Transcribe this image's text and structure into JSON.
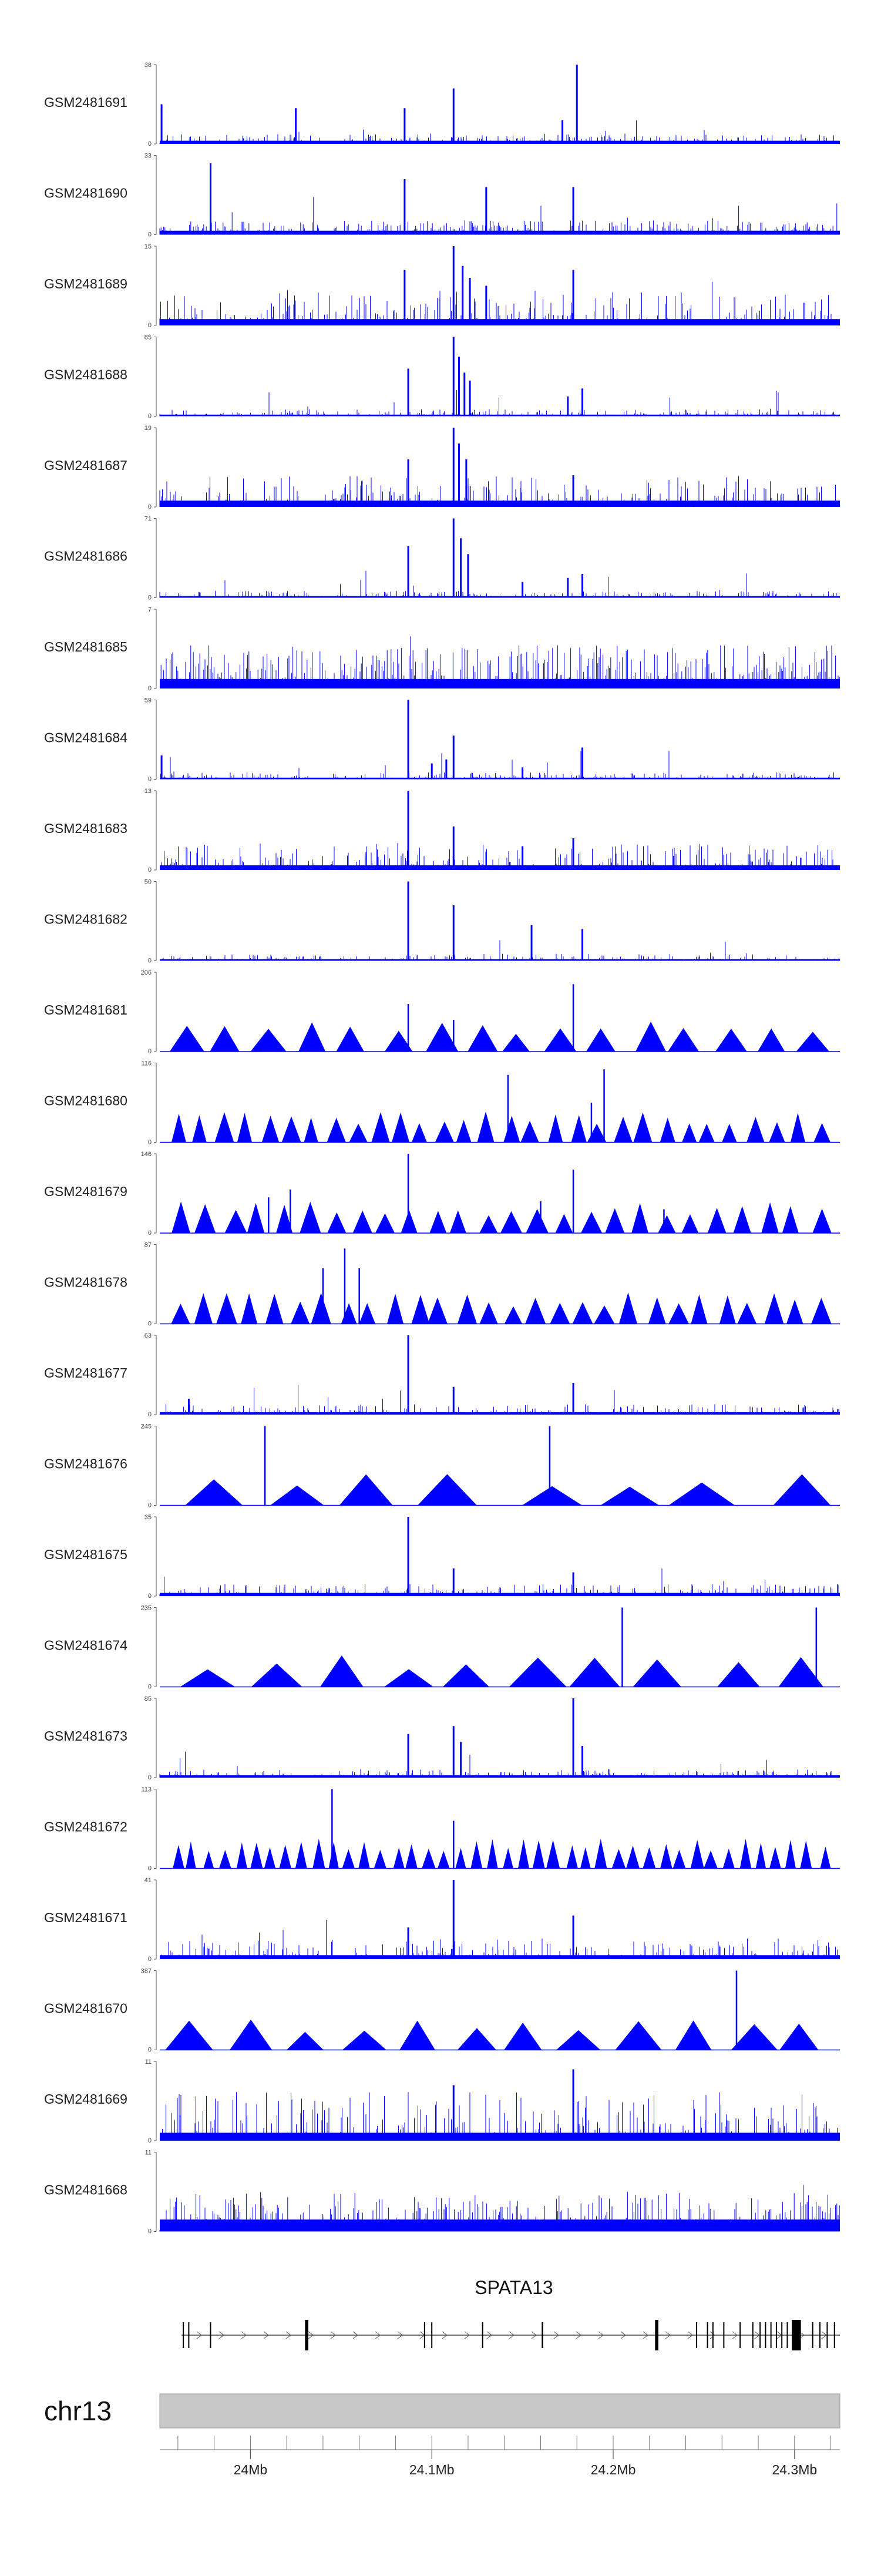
{
  "chart_data": {
    "type": "genome-track-plot",
    "title": "",
    "color": "#0000ff",
    "region": {
      "chromosome": "chr13",
      "start_mb": 23.95,
      "end_mb": 24.325
    },
    "tracks": [
      {
        "name": "GSM2481691",
        "ymax": "38",
        "ymin": "0",
        "max_value": 38,
        "style": "dense",
        "baseline": 0.04,
        "noise": 0.06,
        "peaks": [
          {
            "pos": 23.951,
            "h": 0.5
          },
          {
            "pos": 24.025,
            "h": 0.45
          },
          {
            "pos": 24.085,
            "h": 0.45
          },
          {
            "pos": 24.112,
            "h": 0.7
          },
          {
            "pos": 24.18,
            "h": 1.0
          },
          {
            "pos": 24.172,
            "h": 0.3
          }
        ]
      },
      {
        "name": "GSM2481690",
        "ymax": "33",
        "ymin": "0",
        "max_value": 33,
        "style": "sparse",
        "baseline": 0.05,
        "noise": 0.18,
        "peaks": [
          {
            "pos": 23.978,
            "h": 0.9
          },
          {
            "pos": 24.085,
            "h": 0.7
          },
          {
            "pos": 24.13,
            "h": 0.6
          },
          {
            "pos": 24.178,
            "h": 0.6
          }
        ]
      },
      {
        "name": "GSM2481689",
        "ymax": "15",
        "ymin": "0",
        "max_value": 15,
        "style": "dense",
        "baseline": 0.08,
        "noise": 0.2,
        "peaks": [
          {
            "pos": 24.085,
            "h": 0.7
          },
          {
            "pos": 24.112,
            "h": 1.0
          },
          {
            "pos": 24.117,
            "h": 0.75
          },
          {
            "pos": 24.121,
            "h": 0.6
          },
          {
            "pos": 24.178,
            "h": 0.7
          },
          {
            "pos": 24.13,
            "h": 0.5
          }
        ]
      },
      {
        "name": "GSM2481688",
        "ymax": "85",
        "ymin": "0",
        "max_value": 85,
        "style": "dense",
        "baseline": 0.02,
        "noise": 0.04,
        "peaks": [
          {
            "pos": 24.087,
            "h": 0.6
          },
          {
            "pos": 24.112,
            "h": 1.0
          },
          {
            "pos": 24.115,
            "h": 0.75
          },
          {
            "pos": 24.118,
            "h": 0.55
          },
          {
            "pos": 24.121,
            "h": 0.45
          },
          {
            "pos": 24.175,
            "h": 0.25
          },
          {
            "pos": 24.183,
            "h": 0.35
          }
        ]
      },
      {
        "name": "GSM2481687",
        "ymax": "19",
        "ymin": "0",
        "max_value": 19,
        "style": "dense",
        "baseline": 0.08,
        "noise": 0.18,
        "peaks": [
          {
            "pos": 24.087,
            "h": 0.6
          },
          {
            "pos": 24.112,
            "h": 1.0
          },
          {
            "pos": 24.115,
            "h": 0.8
          },
          {
            "pos": 24.119,
            "h": 0.6
          },
          {
            "pos": 24.178,
            "h": 0.4
          }
        ]
      },
      {
        "name": "GSM2481686",
        "ymax": "71",
        "ymin": "0",
        "max_value": 71,
        "style": "dense",
        "baseline": 0.02,
        "noise": 0.04,
        "peaks": [
          {
            "pos": 24.087,
            "h": 0.65
          },
          {
            "pos": 24.112,
            "h": 1.0
          },
          {
            "pos": 24.116,
            "h": 0.75
          },
          {
            "pos": 24.12,
            "h": 0.55
          },
          {
            "pos": 24.15,
            "h": 0.2
          },
          {
            "pos": 24.175,
            "h": 0.25
          },
          {
            "pos": 24.183,
            "h": 0.3
          }
        ]
      },
      {
        "name": "GSM2481685",
        "ymax": "7",
        "ymin": "0",
        "max_value": 7,
        "style": "sparse",
        "baseline": 0.12,
        "noise": 0.55,
        "peaks": []
      },
      {
        "name": "GSM2481684",
        "ymax": "59",
        "ymin": "0",
        "max_value": 59,
        "style": "dense",
        "baseline": 0.02,
        "noise": 0.04,
        "peaks": [
          {
            "pos": 23.951,
            "h": 0.3
          },
          {
            "pos": 24.087,
            "h": 1.0
          },
          {
            "pos": 24.1,
            "h": 0.2
          },
          {
            "pos": 24.108,
            "h": 0.25
          },
          {
            "pos": 24.112,
            "h": 0.55
          },
          {
            "pos": 24.15,
            "h": 0.15
          },
          {
            "pos": 24.183,
            "h": 0.4
          }
        ]
      },
      {
        "name": "GSM2481683",
        "ymax": "13",
        "ymin": "0",
        "max_value": 13,
        "style": "dense",
        "baseline": 0.06,
        "noise": 0.15,
        "peaks": [
          {
            "pos": 24.087,
            "h": 1.0
          },
          {
            "pos": 24.112,
            "h": 0.55
          },
          {
            "pos": 24.15,
            "h": 0.3
          },
          {
            "pos": 24.178,
            "h": 0.4
          }
        ]
      },
      {
        "name": "GSM2481682",
        "ymax": "50",
        "ymin": "0",
        "max_value": 50,
        "style": "dense",
        "baseline": 0.02,
        "noise": 0.04,
        "peaks": [
          {
            "pos": 24.087,
            "h": 1.0
          },
          {
            "pos": 24.112,
            "h": 0.7
          },
          {
            "pos": 24.155,
            "h": 0.45
          },
          {
            "pos": 24.183,
            "h": 0.4
          }
        ]
      },
      {
        "name": "GSM2481681",
        "ymax": "206",
        "ymin": "0",
        "max_value": 206,
        "style": "triangles",
        "count": 16,
        "peaks": [
          {
            "pos": 24.087,
            "h": 0.6
          },
          {
            "pos": 24.112,
            "h": 0.4
          },
          {
            "pos": 24.178,
            "h": 0.85
          }
        ]
      },
      {
        "name": "GSM2481680",
        "ymax": "116",
        "ymin": "0",
        "max_value": 116,
        "style": "triangles",
        "count": 30,
        "peaks": [
          {
            "pos": 24.142,
            "h": 0.85
          },
          {
            "pos": 24.195,
            "h": 0.92
          },
          {
            "pos": 24.188,
            "h": 0.5
          }
        ]
      },
      {
        "name": "GSM2481679",
        "ymax": "146",
        "ymin": "0",
        "max_value": 146,
        "style": "triangles",
        "count": 26,
        "peaks": [
          {
            "pos": 24.01,
            "h": 0.45
          },
          {
            "pos": 24.022,
            "h": 0.55
          },
          {
            "pos": 24.087,
            "h": 1.0
          },
          {
            "pos": 24.16,
            "h": 0.4
          },
          {
            "pos": 24.178,
            "h": 0.8
          },
          {
            "pos": 24.228,
            "h": 0.3
          }
        ]
      },
      {
        "name": "GSM2481678",
        "ymax": "87",
        "ymin": "0",
        "max_value": 87,
        "style": "triangles",
        "count": 28,
        "peaks": [
          {
            "pos": 24.04,
            "h": 0.7
          },
          {
            "pos": 24.052,
            "h": 0.95
          },
          {
            "pos": 24.06,
            "h": 0.7
          }
        ]
      },
      {
        "name": "GSM2481677",
        "ymax": "63",
        "ymin": "0",
        "max_value": 63,
        "style": "dense",
        "baseline": 0.03,
        "noise": 0.06,
        "peaks": [
          {
            "pos": 24.087,
            "h": 1.0
          },
          {
            "pos": 24.112,
            "h": 0.35
          },
          {
            "pos": 24.178,
            "h": 0.4
          },
          {
            "pos": 23.966,
            "h": 0.2
          }
        ]
      },
      {
        "name": "GSM2481676",
        "ymax": "245",
        "ymin": "0",
        "max_value": 245,
        "style": "triangles",
        "count": 8,
        "peaks": [
          {
            "pos": 24.008,
            "h": 1.0
          },
          {
            "pos": 24.165,
            "h": 1.0
          },
          {
            "pos": 24.112,
            "h": 0.3
          }
        ]
      },
      {
        "name": "GSM2481675",
        "ymax": "35",
        "ymin": "0",
        "max_value": 35,
        "style": "dense",
        "baseline": 0.04,
        "noise": 0.07,
        "peaks": [
          {
            "pos": 24.087,
            "h": 1.0
          },
          {
            "pos": 24.112,
            "h": 0.35
          },
          {
            "pos": 24.178,
            "h": 0.3
          }
        ]
      },
      {
        "name": "GSM2481674",
        "ymax": "235",
        "ymin": "0",
        "max_value": 235,
        "style": "triangles",
        "count": 10,
        "peaks": [
          {
            "pos": 24.205,
            "h": 1.0
          },
          {
            "pos": 24.312,
            "h": 1.0
          }
        ]
      },
      {
        "name": "GSM2481673",
        "ymax": "85",
        "ymin": "0",
        "max_value": 85,
        "style": "dense",
        "baseline": 0.03,
        "noise": 0.05,
        "peaks": [
          {
            "pos": 24.087,
            "h": 0.55
          },
          {
            "pos": 24.112,
            "h": 0.65
          },
          {
            "pos": 24.116,
            "h": 0.45
          },
          {
            "pos": 24.178,
            "h": 1.0
          },
          {
            "pos": 24.183,
            "h": 0.4
          }
        ]
      },
      {
        "name": "GSM2481672",
        "ymax": "113",
        "ymin": "0",
        "max_value": 113,
        "style": "triangles",
        "count": 42,
        "peaks": [
          {
            "pos": 24.045,
            "h": 1.0
          },
          {
            "pos": 24.112,
            "h": 0.6
          }
        ]
      },
      {
        "name": "GSM2481671",
        "ymax": "41",
        "ymin": "0",
        "max_value": 41,
        "style": "dense",
        "baseline": 0.05,
        "noise": 0.12,
        "peaks": [
          {
            "pos": 24.112,
            "h": 1.0
          },
          {
            "pos": 24.178,
            "h": 0.55
          },
          {
            "pos": 24.087,
            "h": 0.4
          }
        ]
      },
      {
        "name": "GSM2481670",
        "ymax": "387",
        "ymin": "0",
        "max_value": 387,
        "style": "triangles",
        "count": 12,
        "peaks": [
          {
            "pos": 24.268,
            "h": 1.0
          }
        ]
      },
      {
        "name": "GSM2481669",
        "ymax": "11",
        "ymin": "0",
        "max_value": 11,
        "style": "dense",
        "baseline": 0.1,
        "noise": 0.28,
        "peaks": [
          {
            "pos": 24.178,
            "h": 0.9
          },
          {
            "pos": 24.112,
            "h": 0.7
          }
        ]
      },
      {
        "name": "GSM2481668",
        "ymax": "11",
        "ymin": "0",
        "max_value": 11,
        "style": "sparse",
        "baseline": 0.15,
        "noise": 0.5,
        "peaks": []
      }
    ],
    "gene": {
      "name": "SPATA13",
      "strand": "+",
      "start_mb": 23.962,
      "end_mb": 24.325,
      "exons": [
        {
          "pos": 23.963,
          "w": 0.0004
        },
        {
          "pos": 23.966,
          "w": 0.0004
        },
        {
          "pos": 23.978,
          "w": 0.0004
        },
        {
          "pos": 24.031,
          "w": 0.0018
        },
        {
          "pos": 24.096,
          "w": 0.0004
        },
        {
          "pos": 24.1,
          "w": 0.0004
        },
        {
          "pos": 24.128,
          "w": 0.0004
        },
        {
          "pos": 24.161,
          "w": 0.0008
        },
        {
          "pos": 24.224,
          "w": 0.0018
        },
        {
          "pos": 24.246,
          "w": 0.0004
        },
        {
          "pos": 24.252,
          "w": 0.0004
        },
        {
          "pos": 24.255,
          "w": 0.0004
        },
        {
          "pos": 24.261,
          "w": 0.0004
        },
        {
          "pos": 24.27,
          "w": 0.0004
        },
        {
          "pos": 24.277,
          "w": 0.0004
        },
        {
          "pos": 24.281,
          "w": 0.0004
        },
        {
          "pos": 24.284,
          "w": 0.0004
        },
        {
          "pos": 24.287,
          "w": 0.0004
        },
        {
          "pos": 24.29,
          "w": 0.0004
        },
        {
          "pos": 24.293,
          "w": 0.0004
        },
        {
          "pos": 24.296,
          "w": 0.0004
        },
        {
          "pos": 24.301,
          "w": 0.005
        },
        {
          "pos": 24.31,
          "w": 0.0004
        },
        {
          "pos": 24.314,
          "w": 0.0004
        },
        {
          "pos": 24.318,
          "w": 0.0004
        },
        {
          "pos": 24.322,
          "w": 0.0004
        }
      ]
    },
    "axis": {
      "chrom_label": "chr13",
      "major_ticks": [
        {
          "pos": 24.0,
          "label": "24Mb"
        },
        {
          "pos": 24.1,
          "label": "24.1Mb"
        },
        {
          "pos": 24.2,
          "label": "24.2Mb"
        },
        {
          "pos": 24.3,
          "label": "24.3Mb"
        }
      ],
      "minor_step_mb": 0.02
    }
  }
}
